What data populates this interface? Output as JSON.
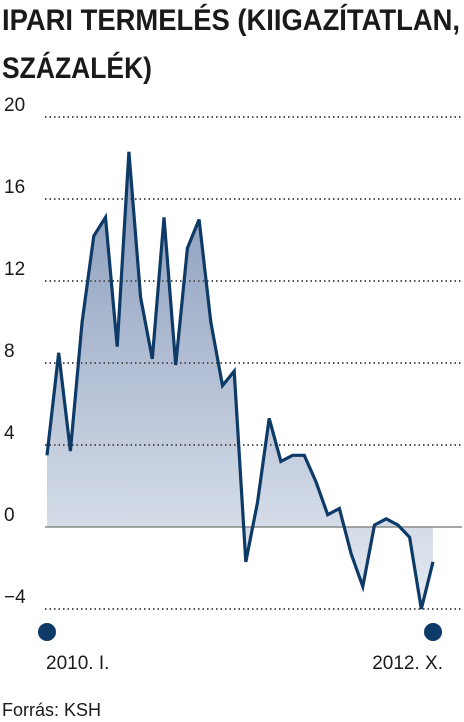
{
  "chart_data": {
    "type": "line",
    "title": [
      "IPARI TERMELÉS (KIIGAZÍTATLAN,",
      "SZÁZALÉK)"
    ],
    "source": "Forrás: KSH",
    "categories": [
      "2010. I.",
      null,
      null,
      null,
      null,
      null,
      null,
      null,
      null,
      null,
      null,
      null,
      null,
      null,
      null,
      null,
      null,
      null,
      null,
      null,
      null,
      null,
      null,
      null,
      null,
      null,
      null,
      null,
      null,
      null,
      null,
      null,
      null,
      "2012. X."
    ],
    "values": [
      3.5,
      8.5,
      3.7,
      10,
      14.2,
      15.1,
      8.8,
      18.3,
      11.2,
      8.2,
      15.1,
      7.9,
      13.6,
      15,
      10,
      6.9,
      7.6,
      -1.7,
      1.2,
      5.3,
      3.2,
      3.5,
      3.5,
      2.2,
      0.6,
      0.9,
      -1.3,
      -2.9,
      0.1,
      0.4,
      0.1,
      -0.5,
      -4,
      -1.7
    ],
    "color": "#0d3a66",
    "ylim": [
      -4,
      20
    ],
    "yticks": [
      {
        "value": -4,
        "label": "−4"
      },
      0,
      4,
      8,
      12,
      16,
      20
    ],
    "grid": true
  }
}
